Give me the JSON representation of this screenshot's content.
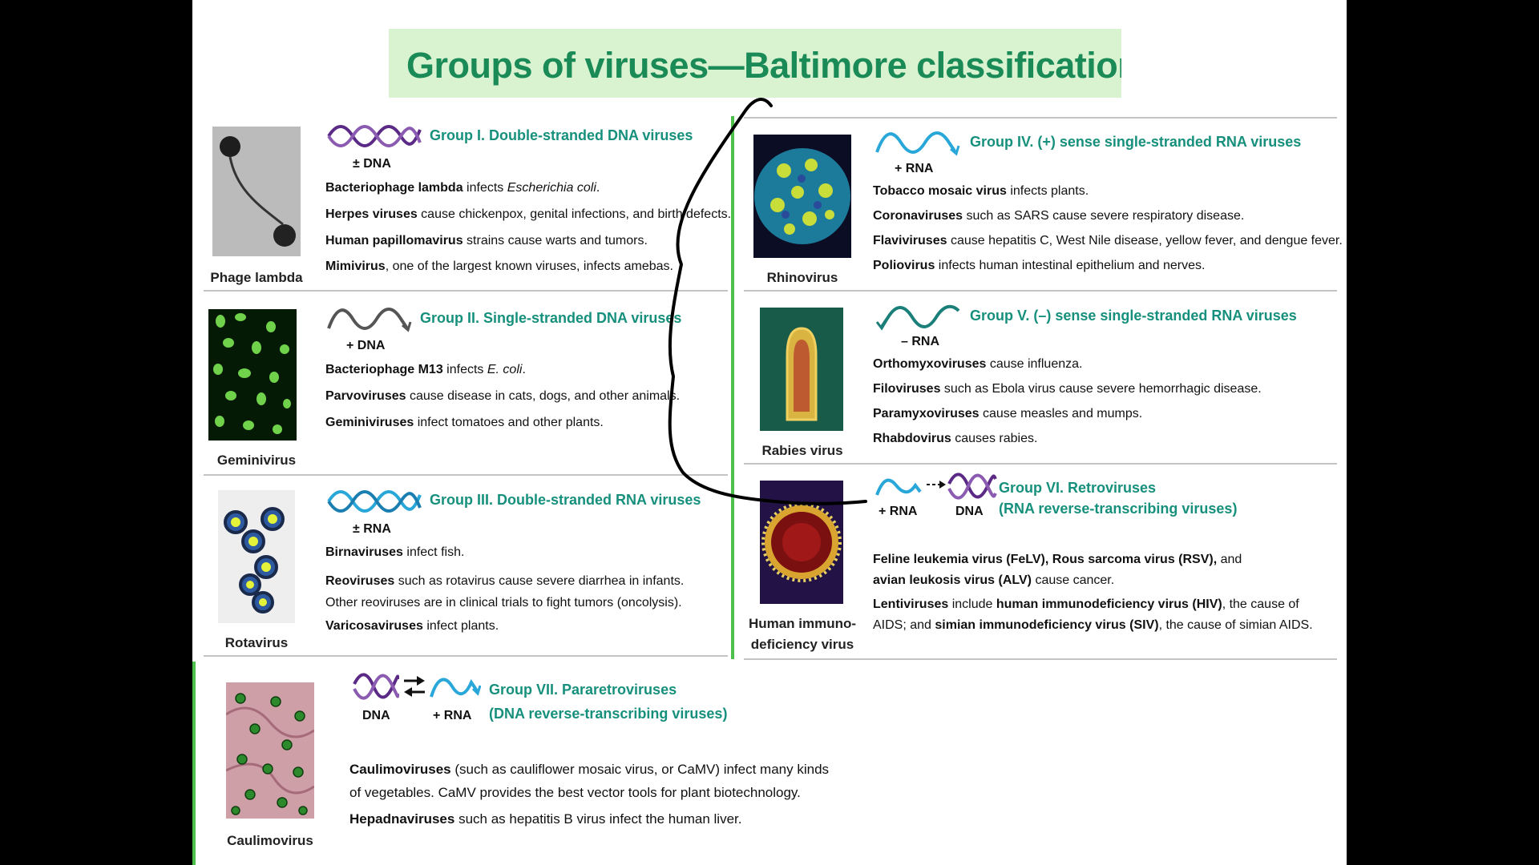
{
  "title": "Groups of viruses—Baltimore classification. (",
  "colors": {
    "title": "#1a8a57",
    "heading": "#16907c",
    "rule": "#4cc04a",
    "purple_strand": "#5b2a86",
    "blue_strand": "#2aa7d9",
    "gray_strand": "#555555",
    "ink": "#000000"
  },
  "groups": [
    {
      "title": "Group I. Double-stranded DNA viruses",
      "label": "± DNA",
      "thumb_caption": "Phage lambda",
      "lines": [
        {
          "b": "Bacteriophage lambda",
          "t": " infects ",
          "i": "Escherichia coli",
          "e": "."
        },
        {
          "b": "Herpes viruses",
          "t": " cause chickenpox, genital infections, and birth defects.",
          "i": "",
          "e": ""
        },
        {
          "b": "Human papillomavirus",
          "t": " strains cause warts and tumors.",
          "i": "",
          "e": ""
        },
        {
          "b": "Mimivirus",
          "t": ", one of the largest known viruses, infects amebas.",
          "i": "",
          "e": ""
        }
      ]
    },
    {
      "title": "Group II. Single-stranded DNA viruses",
      "label": "+ DNA",
      "thumb_caption": "Geminivirus",
      "lines": [
        {
          "b": "Bacteriophage M13",
          "t": " infects ",
          "i": "E. coli",
          "e": "."
        },
        {
          "b": "Parvoviruses",
          "t": " cause disease in cats, dogs, and other animals.",
          "i": "",
          "e": ""
        },
        {
          "b": "Geminiviruses",
          "t": " infect tomatoes and other plants.",
          "i": "",
          "e": ""
        }
      ]
    },
    {
      "title": "Group III. Double-stranded RNA viruses",
      "label": "± RNA",
      "thumb_caption": "Rotavirus",
      "lines": [
        {
          "b": "Birnaviruses",
          "t": " infect fish.",
          "i": "",
          "e": ""
        },
        {
          "b": "Reoviruses",
          "t": " such as rotavirus cause severe diarrhea in infants. Other reoviruses are in clinical trials to fight tumors (oncolysis).",
          "i": "",
          "e": ""
        },
        {
          "b": "Varicosaviruses",
          "t": " infect plants.",
          "i": "",
          "e": ""
        }
      ]
    },
    {
      "title": "Group IV. (+) sense single-stranded RNA viruses",
      "label": "+ RNA",
      "thumb_caption": "Rhinovirus",
      "lines": [
        {
          "b": "Tobacco mosaic virus",
          "t": " infects plants.",
          "i": "",
          "e": ""
        },
        {
          "b": "Coronaviruses",
          "t": " such as SARS cause severe respiratory disease.",
          "i": "",
          "e": ""
        },
        {
          "b": "Flaviviruses",
          "t": " cause hepatitis C, West Nile disease, yellow fever, and dengue fever.",
          "i": "",
          "e": ""
        },
        {
          "b": "Poliovirus",
          "t": " infects human intestinal epithelium and nerves.",
          "i": "",
          "e": ""
        }
      ]
    },
    {
      "title": "Group V. (–) sense single-stranded RNA viruses",
      "label": "– RNA",
      "thumb_caption": "Rabies virus",
      "lines": [
        {
          "b": "Orthomyxoviruses",
          "t": " cause influenza.",
          "i": "",
          "e": ""
        },
        {
          "b": "Filoviruses",
          "t": " such as Ebola virus cause severe hemorrhagic disease.",
          "i": "",
          "e": ""
        },
        {
          "b": "Paramyxoviruses",
          "t": " cause measles and mumps.",
          "i": "",
          "e": ""
        },
        {
          "b": "Rhabdovirus",
          "t": " causes rabies.",
          "i": "",
          "e": ""
        }
      ]
    },
    {
      "title": "Group VI. Retroviruses",
      "subtitle": "(RNA reverse-transcribing viruses)",
      "label": "+ RNA",
      "label2": "DNA",
      "thumb_caption": "Human immuno-deficiency virus",
      "lines": [
        {
          "b": "Feline leukemia virus (FeLV), Rous sarcoma virus (RSV),",
          "t": " and ",
          "b2": "avian leukosis virus (ALV)",
          "t2": " cause cancer."
        },
        {
          "b": "Lentiviruses",
          "t": " include ",
          "b2": "human immunodeficiency virus (HIV)",
          "t2": ", the cause of AIDS; and ",
          "b3": "simian immunodeficiency virus (SIV)",
          "t3": ", the cause of simian AIDS."
        }
      ]
    },
    {
      "title": "Group VII. Pararetroviruses",
      "subtitle": "(DNA reverse-transcribing viruses)",
      "label": "DNA",
      "label2": "+ RNA",
      "thumb_caption": "Caulimovirus",
      "lines": [
        {
          "b": "Caulimoviruses",
          "t": " (such as cauliflower mosaic virus, or CaMV) infect many kinds of vegetables. CaMV provides the best vector tools for plant biotechnology.",
          "i": "",
          "e": ""
        },
        {
          "b": "Hepadnaviruses",
          "t": " such as hepatitis B virus infect the human liver.",
          "i": "",
          "e": ""
        }
      ]
    }
  ]
}
